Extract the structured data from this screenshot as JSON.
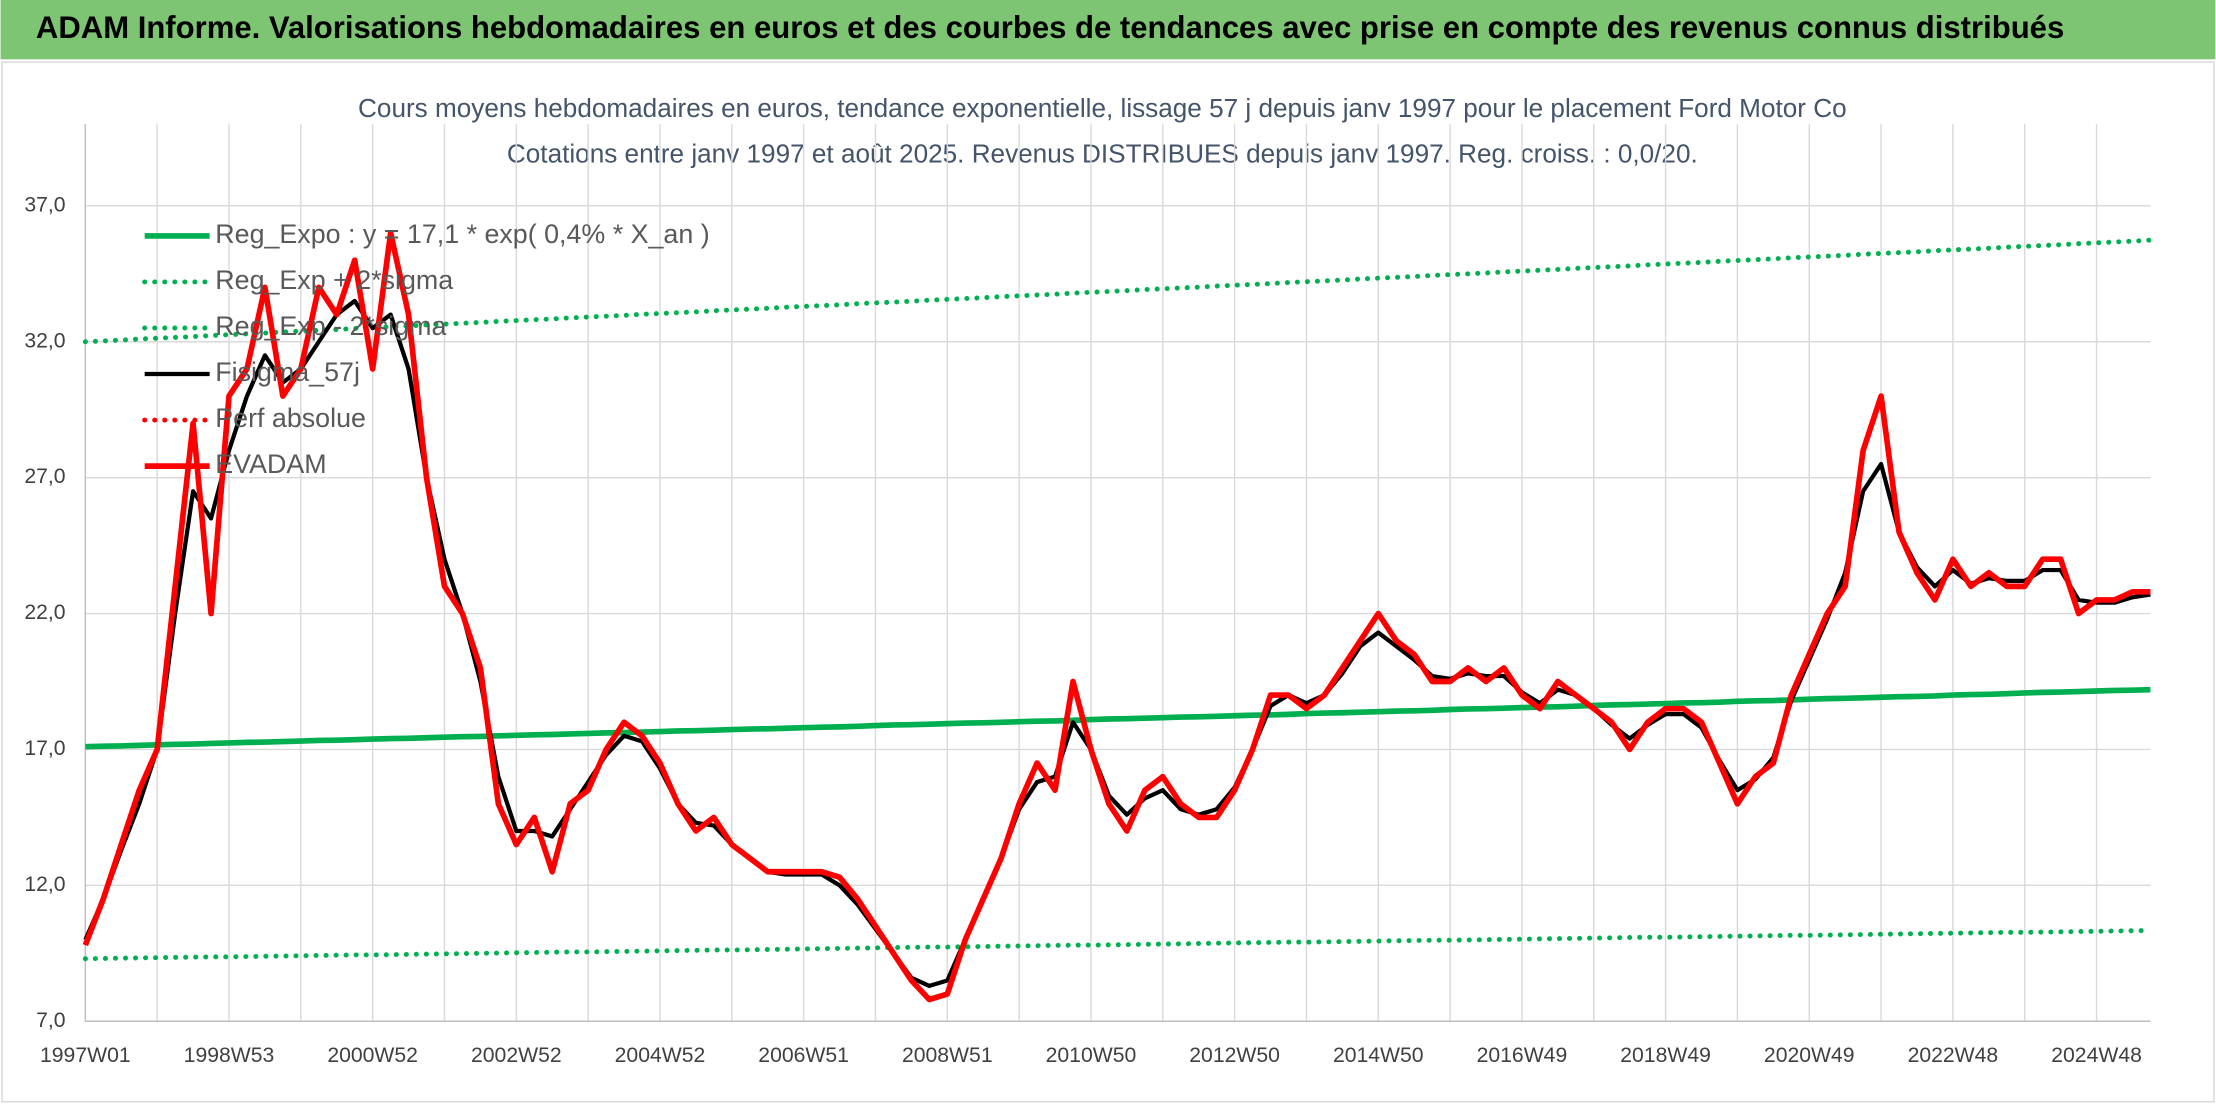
{
  "header": {
    "title": "ADAM Informe. Valorisations hebdomadaires en euros et des courbes de tendances avec prise en compte des revenus connus distribués"
  },
  "chart_data": {
    "type": "line",
    "title": "Cours moyens hebdomadaires en euros, tendance exponentielle, lissage 57 j depuis janv 1997 pour le placement Ford Motor Co",
    "subtitle": "Cotations entre janv 1997 et août 2025. Revenus DISTRIBUES depuis janv 1997. Reg. croiss. : 0,0/20.",
    "legend": "upper left",
    "grid": true,
    "ylim": [
      7,
      40
    ],
    "yticks": [
      {
        "value": 7,
        "label": "7,0"
      },
      {
        "value": 12,
        "label": "12,0"
      },
      {
        "value": 17,
        "label": "17,0"
      },
      {
        "value": 22,
        "label": "22,0"
      },
      {
        "value": 27,
        "label": "27,0"
      },
      {
        "value": 32,
        "label": "32,0"
      },
      {
        "value": 37,
        "label": "37,0"
      }
    ],
    "categories": [
      "1997W01",
      null,
      null,
      null,
      null,
      null,
      null,
      null,
      "1998W53",
      null,
      null,
      null,
      null,
      null,
      null,
      null,
      "2000W52",
      null,
      null,
      null,
      null,
      null,
      null,
      null,
      "2002W52",
      null,
      null,
      null,
      null,
      null,
      null,
      null,
      "2004W52",
      null,
      null,
      null,
      null,
      null,
      null,
      null,
      "2006W51",
      null,
      null,
      null,
      null,
      null,
      null,
      null,
      "2008W51",
      null,
      null,
      null,
      null,
      null,
      null,
      null,
      "2010W50",
      null,
      null,
      null,
      null,
      null,
      null,
      null,
      "2012W50",
      null,
      null,
      null,
      null,
      null,
      null,
      null,
      "2014W50",
      null,
      null,
      null,
      null,
      null,
      null,
      null,
      "2016W49",
      null,
      null,
      null,
      null,
      null,
      null,
      null,
      "2018W49",
      null,
      null,
      null,
      null,
      null,
      null,
      null,
      "2020W49",
      null,
      null,
      null,
      null,
      null,
      null,
      null,
      "2022W48",
      null,
      null,
      null,
      null,
      null,
      null,
      null,
      "2024W48",
      null,
      null,
      null
    ],
    "series": [
      {
        "name": "Reg_Expo : y = 17,1 * exp( 0,4% *  X_an )",
        "color": "#00b050",
        "style": "solid",
        "values": [
          17.1,
          17.12,
          17.13,
          17.15,
          17.17,
          17.19,
          17.2,
          17.22,
          17.24,
          17.26,
          17.27,
          17.29,
          17.31,
          17.33,
          17.34,
          17.36,
          17.38,
          17.4,
          17.41,
          17.43,
          17.45,
          17.47,
          17.48,
          17.5,
          17.52,
          17.54,
          17.55,
          17.57,
          17.59,
          17.61,
          17.62,
          17.64,
          17.66,
          17.68,
          17.69,
          17.71,
          17.73,
          17.75,
          17.76,
          17.78,
          17.8,
          17.82,
          17.83,
          17.85,
          17.88,
          17.9,
          17.91,
          17.93,
          17.95,
          17.97,
          17.98,
          18.0,
          18.02,
          18.04,
          18.05,
          18.07,
          18.1,
          18.12,
          18.13,
          18.15,
          18.17,
          18.19,
          18.2,
          18.22,
          18.24,
          18.26,
          18.27,
          18.29,
          18.32,
          18.34,
          18.35,
          18.37,
          18.39,
          18.41,
          18.42,
          18.44,
          18.47,
          18.49,
          18.5,
          18.52,
          18.54,
          18.56,
          18.57,
          18.59,
          18.62,
          18.64,
          18.65,
          18.67,
          18.69,
          18.71,
          18.72,
          18.74,
          18.77,
          18.79,
          18.8,
          18.82,
          18.85,
          18.87,
          18.88,
          18.9,
          18.92,
          18.94,
          18.95,
          18.97,
          19.0,
          19.02,
          19.03,
          19.05,
          19.08,
          19.1,
          19.11,
          19.13,
          19.15,
          19.17,
          19.18,
          19.2
        ]
      },
      {
        "name": "Reg_Exp + 2*sigma",
        "color": "#00b050",
        "style": "dotted",
        "values": [
          32.0,
          32.03,
          32.06,
          32.1,
          32.13,
          32.16,
          32.19,
          32.23,
          32.26,
          32.29,
          32.32,
          32.36,
          32.39,
          32.42,
          32.45,
          32.49,
          32.52,
          32.55,
          32.58,
          32.62,
          32.65,
          32.68,
          32.71,
          32.75,
          32.78,
          32.81,
          32.84,
          32.88,
          32.91,
          32.94,
          32.97,
          33.01,
          33.04,
          33.07,
          33.1,
          33.14,
          33.17,
          33.2,
          33.23,
          33.27,
          33.3,
          33.33,
          33.36,
          33.4,
          33.43,
          33.46,
          33.49,
          33.53,
          33.56,
          33.59,
          33.62,
          33.66,
          33.69,
          33.72,
          33.75,
          33.79,
          33.82,
          33.85,
          33.88,
          33.92,
          33.95,
          33.98,
          34.01,
          34.05,
          34.08,
          34.11,
          34.14,
          34.18,
          34.21,
          34.24,
          34.27,
          34.31,
          34.34,
          34.37,
          34.4,
          34.44,
          34.47,
          34.5,
          34.53,
          34.57,
          34.6,
          34.63,
          34.66,
          34.7,
          34.73,
          34.76,
          34.79,
          34.83,
          34.86,
          34.89,
          34.92,
          34.96,
          34.99,
          35.02,
          35.05,
          35.09,
          35.12,
          35.15,
          35.18,
          35.22,
          35.25,
          35.28,
          35.31,
          35.35,
          35.38,
          35.41,
          35.44,
          35.48,
          35.51,
          35.54,
          35.57,
          35.61,
          35.64,
          35.67,
          35.7,
          35.74
        ]
      },
      {
        "name": "Reg_Exp - 2*sigma",
        "color": "#00b050",
        "style": "dotted",
        "values": [
          9.3,
          9.31,
          9.32,
          9.33,
          9.34,
          9.35,
          9.36,
          9.37,
          9.37,
          9.38,
          9.39,
          9.4,
          9.41,
          9.42,
          9.43,
          9.44,
          9.44,
          9.45,
          9.46,
          9.47,
          9.48,
          9.49,
          9.5,
          9.51,
          9.52,
          9.53,
          9.54,
          9.55,
          9.55,
          9.56,
          9.57,
          9.58,
          9.59,
          9.6,
          9.61,
          9.62,
          9.62,
          9.63,
          9.64,
          9.65,
          9.66,
          9.67,
          9.68,
          9.69,
          9.7,
          9.71,
          9.72,
          9.73,
          9.73,
          9.74,
          9.75,
          9.76,
          9.77,
          9.78,
          9.79,
          9.8,
          9.8,
          9.81,
          9.82,
          9.83,
          9.84,
          9.85,
          9.86,
          9.87,
          9.88,
          9.89,
          9.9,
          9.91,
          9.91,
          9.92,
          9.93,
          9.94,
          9.95,
          9.96,
          9.97,
          9.98,
          9.98,
          9.99,
          10.0,
          10.01,
          10.02,
          10.03,
          10.04,
          10.05,
          10.06,
          10.07,
          10.08,
          10.09,
          10.09,
          10.1,
          10.11,
          10.12,
          10.13,
          10.14,
          10.15,
          10.16,
          10.16,
          10.17,
          10.18,
          10.19,
          10.2,
          10.21,
          10.22,
          10.23,
          10.24,
          10.25,
          10.26,
          10.27,
          10.27,
          10.28,
          10.29,
          10.3,
          10.31,
          10.32,
          10.33,
          10.34
        ]
      },
      {
        "name": "Fisigma_57j",
        "color": "#000000",
        "style": "solid",
        "values": [
          10,
          11.5,
          13.3,
          15,
          17,
          22,
          26.5,
          25.5,
          28,
          30,
          31.5,
          30.5,
          31,
          32,
          33,
          33.5,
          32.5,
          33,
          31,
          27,
          24,
          22,
          19.5,
          16,
          14,
          14,
          13.8,
          14.8,
          15.8,
          16.8,
          17.5,
          17.3,
          16.3,
          15,
          14.3,
          14.2,
          13.5,
          13,
          12.5,
          12.4,
          12.4,
          12.4,
          12,
          11.3,
          10.4,
          9.5,
          8.6,
          8.3,
          8.5,
          10,
          11.5,
          13,
          14.8,
          15.8,
          16,
          18,
          17,
          15.3,
          14.6,
          15.2,
          15.5,
          14.8,
          14.6,
          14.8,
          15.6,
          17,
          18.6,
          19,
          18.7,
          19,
          19.8,
          20.8,
          21.3,
          20.8,
          20.3,
          19.7,
          19.6,
          19.8,
          19.7,
          19.7,
          19.1,
          18.7,
          19.2,
          19,
          18.5,
          17.9,
          17.4,
          17.9,
          18.3,
          18.3,
          17.8,
          16.6,
          15.5,
          15.9,
          16.7,
          18.8,
          20.3,
          21.8,
          23.5,
          26.5,
          27.5,
          25,
          23.7,
          23,
          23.6,
          23.1,
          23.3,
          23.2,
          23.2,
          23.6,
          23.6,
          22.5,
          22.4,
          22.4,
          22.6,
          22.7
        ]
      },
      {
        "name": "Perf absolue",
        "color": "#ff0000",
        "style": "dotted",
        "values": [
          null,
          null,
          null,
          null,
          null,
          null,
          null,
          null,
          null,
          null,
          null,
          null,
          null,
          null,
          null,
          null,
          null,
          null,
          null,
          null,
          null,
          null,
          null,
          null,
          null,
          null,
          null,
          null,
          null,
          null,
          null,
          null,
          null,
          null,
          null,
          null,
          null,
          null,
          null,
          null,
          null,
          null,
          null,
          null,
          null,
          null,
          null,
          null,
          null,
          null,
          null,
          null,
          null,
          null,
          null,
          null,
          null,
          null,
          null,
          null,
          null,
          null,
          null,
          null,
          null,
          null,
          null,
          null,
          null,
          null,
          null,
          null,
          null,
          null,
          null,
          null,
          null,
          null,
          null,
          null,
          null,
          null,
          null,
          null,
          null,
          null,
          null,
          null,
          null,
          null,
          null,
          null,
          null,
          null,
          null,
          null,
          null,
          null,
          null,
          null,
          null,
          null,
          null,
          null,
          null,
          null,
          null,
          null,
          null,
          null,
          null,
          null,
          null,
          null,
          null,
          null
        ]
      },
      {
        "name": "EVADAM",
        "color": "#ff0000",
        "style": "solid",
        "values": [
          9.8,
          11.5,
          13.5,
          15.5,
          17,
          23,
          29,
          22,
          30,
          31,
          34,
          30,
          31,
          34,
          33,
          35,
          31,
          36,
          33,
          27,
          23,
          22,
          20,
          15,
          13.5,
          14.5,
          12.5,
          15,
          15.5,
          17,
          18,
          17.5,
          16.5,
          15,
          14,
          14.5,
          13.5,
          13,
          12.5,
          12.5,
          12.5,
          12.5,
          12.3,
          11.5,
          10.5,
          9.5,
          8.5,
          7.8,
          8,
          10,
          11.5,
          13,
          15,
          16.5,
          15.5,
          19.5,
          17,
          15,
          14,
          15.5,
          16,
          15,
          14.5,
          14.5,
          15.5,
          17,
          19,
          19,
          18.5,
          19,
          20,
          21,
          22,
          21,
          20.5,
          19.5,
          19.5,
          20,
          19.5,
          20,
          19,
          18.5,
          19.5,
          19,
          18.5,
          18,
          17,
          18,
          18.5,
          18.5,
          18,
          16.5,
          15,
          16,
          16.5,
          19,
          20.5,
          22,
          23,
          28,
          30,
          25,
          23.5,
          22.5,
          24,
          23,
          23.5,
          23,
          23,
          24,
          24,
          22,
          22.5,
          22.5,
          22.8,
          22.8
        ]
      }
    ]
  }
}
